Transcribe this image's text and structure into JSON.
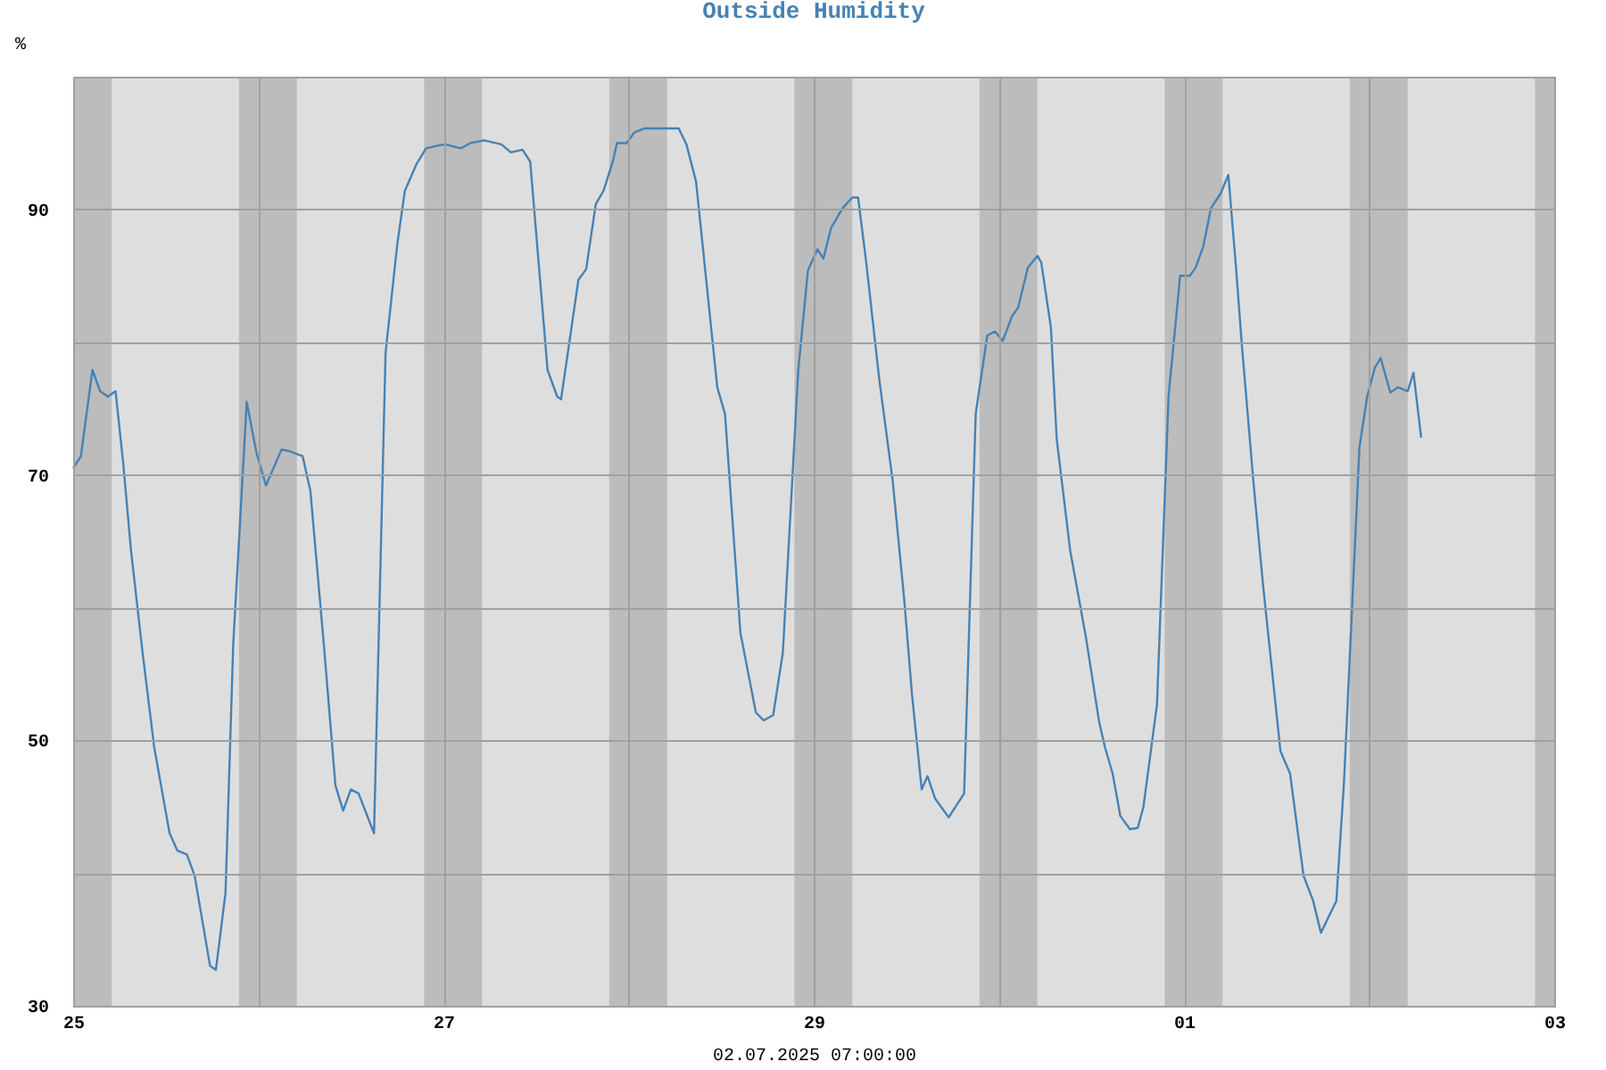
{
  "chart_data": {
    "type": "line",
    "title": "Outside Humidity",
    "xlabel": "02.07.2025 07:00:00",
    "ylabel": "%",
    "xlim": [
      "2025-06-25T00:00",
      "2025-07-03T00:00"
    ],
    "xticks": [
      {
        "value": "2025-06-25T00:00",
        "label": "25"
      },
      {
        "value": "2025-06-26T00:00",
        "label": null
      },
      {
        "value": "2025-06-27T00:00",
        "label": "27"
      },
      {
        "value": "2025-06-28T00:00",
        "label": null
      },
      {
        "value": "2025-06-29T00:00",
        "label": "29"
      },
      {
        "value": "2025-06-30T00:00",
        "label": null
      },
      {
        "value": "2025-07-01T00:00",
        "label": "01"
      },
      {
        "value": "2025-07-02T00:00",
        "label": null
      },
      {
        "value": "2025-07-03T00:00",
        "label": "03"
      }
    ],
    "ylim": [
      30,
      100
    ],
    "yticks": [
      30,
      {
        "value": 40,
        "label": null
      },
      50,
      {
        "value": 60,
        "label": null
      },
      70,
      {
        "value": 80,
        "label": null
      },
      90,
      {
        "value": 100,
        "label": null
      }
    ],
    "grid": true,
    "line_style": "solid",
    "marker": "none",
    "bands": [
      {
        "axis": "x",
        "from": "2025-06-25T00:00",
        "to": "2025-06-25T05:00",
        "color": "#bcbcbc"
      },
      {
        "axis": "x",
        "from": "2025-06-25T21:30",
        "to": "2025-06-26T05:00",
        "color": "#bcbcbc"
      },
      {
        "axis": "x",
        "from": "2025-06-26T21:30",
        "to": "2025-06-27T05:00",
        "color": "#bcbcbc"
      },
      {
        "axis": "x",
        "from": "2025-06-27T21:30",
        "to": "2025-06-28T05:00",
        "color": "#bcbcbc"
      },
      {
        "axis": "x",
        "from": "2025-06-28T21:30",
        "to": "2025-06-29T05:00",
        "color": "#bcbcbc"
      },
      {
        "axis": "x",
        "from": "2025-06-29T21:30",
        "to": "2025-06-30T05:00",
        "color": "#bcbcbc"
      },
      {
        "axis": "x",
        "from": "2025-06-30T21:30",
        "to": "2025-07-01T05:00",
        "color": "#bcbcbc"
      },
      {
        "axis": "x",
        "from": "2025-07-01T21:30",
        "to": "2025-07-02T05:00",
        "color": "#bcbcbc"
      },
      {
        "axis": "x",
        "from": "2025-07-02T21:30",
        "to": "2025-07-03T00:00",
        "color": "#bcbcbc"
      }
    ],
    "series": [
      {
        "color": "#4682b4",
        "x": [
          "2025-06-25T00:00",
          "2025-06-25T01:00",
          "2025-06-25T02:30",
          "2025-06-25T03:30",
          "2025-06-25T04:30",
          "2025-06-25T05:30",
          "2025-06-25T06:30",
          "2025-06-25T07:30",
          "2025-06-25T09:00",
          "2025-06-25T10:30",
          "2025-06-25T12:30",
          "2025-06-25T13:30",
          "2025-06-25T14:45",
          "2025-06-25T15:45",
          "2025-06-25T17:45",
          "2025-06-25T18:30",
          "2025-06-25T19:45",
          "2025-06-25T20:45",
          "2025-06-25T22:30",
          "2025-06-25T23:45",
          "2025-06-26T01:00",
          "2025-06-26T03:00",
          "2025-06-26T04:00",
          "2025-06-26T05:45",
          "2025-06-26T06:45",
          "2025-06-26T08:30",
          "2025-06-26T10:00",
          "2025-06-26T11:00",
          "2025-06-26T12:00",
          "2025-06-26T13:00",
          "2025-06-26T15:00",
          "2025-06-26T16:30",
          "2025-06-26T18:00",
          "2025-06-26T19:00",
          "2025-06-26T20:30",
          "2025-06-26T21:45",
          "2025-06-26T23:15",
          "2025-06-27T00:15",
          "2025-06-27T02:15",
          "2025-06-27T03:30",
          "2025-06-27T05:15",
          "2025-06-27T07:30",
          "2025-06-27T08:45",
          "2025-06-27T10:15",
          "2025-06-27T11:15",
          "2025-06-27T13:30",
          "2025-06-27T14:45",
          "2025-06-27T15:15",
          "2025-06-27T17:30",
          "2025-06-27T18:30",
          "2025-06-27T19:45",
          "2025-06-27T20:45",
          "2025-06-27T22:00",
          "2025-06-27T22:30",
          "2025-06-27T23:45",
          "2025-06-28T00:45",
          "2025-06-28T02:00",
          "2025-06-28T06:30",
          "2025-06-28T07:30",
          "2025-06-28T08:45",
          "2025-06-28T11:30",
          "2025-06-28T12:30",
          "2025-06-28T14:30",
          "2025-06-28T16:30",
          "2025-06-28T17:30",
          "2025-06-28T18:45",
          "2025-06-28T20:00",
          "2025-06-28T22:00",
          "2025-06-28T23:15",
          "2025-06-29T00:30",
          "2025-06-29T01:15",
          "2025-06-29T02:15",
          "2025-06-29T03:45",
          "2025-06-29T05:00",
          "2025-06-29T05:45",
          "2025-06-29T06:45",
          "2025-06-29T08:30",
          "2025-06-29T10:15",
          "2025-06-29T11:45",
          "2025-06-29T12:45",
          "2025-06-29T14:00",
          "2025-06-29T14:45",
          "2025-06-29T15:45",
          "2025-06-29T17:30",
          "2025-06-29T19:30",
          "2025-06-29T21:00",
          "2025-06-29T22:30",
          "2025-06-29T23:30",
          "2025-06-30T00:30",
          "2025-06-30T01:45",
          "2025-06-30T02:30",
          "2025-06-30T03:45",
          "2025-06-30T05:00",
          "2025-06-30T05:30",
          "2025-06-30T06:45",
          "2025-06-30T07:30",
          "2025-06-30T09:15",
          "2025-06-30T11:15",
          "2025-06-30T13:00",
          "2025-06-30T13:45",
          "2025-06-30T14:45",
          "2025-06-30T15:45",
          "2025-06-30T17:00",
          "2025-06-30T18:00",
          "2025-06-30T18:45",
          "2025-06-30T20:30",
          "2025-06-30T22:00",
          "2025-06-30T23:30",
          "2025-07-01T00:45",
          "2025-07-01T01:30",
          "2025-07-01T02:30",
          "2025-07-01T03:30",
          "2025-07-01T04:45",
          "2025-07-01T05:45",
          "2025-07-01T06:45",
          "2025-07-01T07:30",
          "2025-07-01T09:00",
          "2025-07-01T10:15",
          "2025-07-01T11:45",
          "2025-07-01T12:30",
          "2025-07-01T13:45",
          "2025-07-01T15:30",
          "2025-07-01T16:45",
          "2025-07-01T17:45",
          "2025-07-01T19:45",
          "2025-07-01T20:45",
          "2025-07-01T22:45",
          "2025-07-01T23:45",
          "2025-07-02T00:45",
          "2025-07-02T01:30",
          "2025-07-02T02:45",
          "2025-07-02T03:45",
          "2025-07-02T05:00",
          "2025-07-02T05:45",
          "2025-07-02T06:45"
        ],
        "values": [
          70.5,
          71.4,
          77.9,
          76.3,
          75.9,
          76.3,
          70.8,
          64.3,
          56.6,
          49.5,
          43.0,
          41.7,
          41.4,
          39.8,
          33.0,
          32.7,
          38.5,
          57.2,
          75.5,
          71.7,
          69.2,
          71.9,
          71.8,
          71.4,
          68.8,
          57.2,
          46.6,
          44.7,
          46.3,
          46.0,
          43.0,
          79.2,
          87.3,
          91.4,
          93.4,
          94.6,
          94.8,
          94.9,
          94.6,
          95.0,
          95.2,
          94.9,
          94.3,
          94.5,
          93.6,
          77.9,
          75.9,
          75.7,
          84.7,
          85.5,
          90.4,
          91.4,
          93.7,
          95.0,
          95.0,
          95.8,
          96.1,
          96.1,
          94.9,
          92.1,
          76.6,
          74.6,
          58.1,
          52.1,
          51.5,
          51.9,
          56.6,
          77.9,
          85.4,
          87.0,
          86.3,
          88.6,
          90.1,
          90.9,
          90.9,
          86.3,
          77.2,
          69.5,
          60.5,
          53.4,
          46.3,
          47.3,
          45.6,
          44.2,
          46.0,
          74.6,
          80.5,
          80.8,
          80.1,
          82.0,
          82.6,
          85.6,
          86.5,
          86.0,
          81.1,
          72.7,
          64.3,
          57.9,
          51.4,
          49.5,
          47.5,
          44.3,
          43.3,
          43.4,
          45.0,
          52.7,
          75.9,
          85.0,
          85.0,
          85.6,
          87.2,
          90.1,
          91.2,
          92.6,
          85.6,
          79.8,
          69.5,
          61.7,
          53.4,
          49.2,
          47.5,
          39.8,
          37.9,
          35.5,
          37.9,
          46.9,
          72.1,
          75.9,
          78.1,
          78.8,
          76.2,
          76.6,
          76.3,
          77.7,
          72.8
        ]
      }
    ]
  }
}
